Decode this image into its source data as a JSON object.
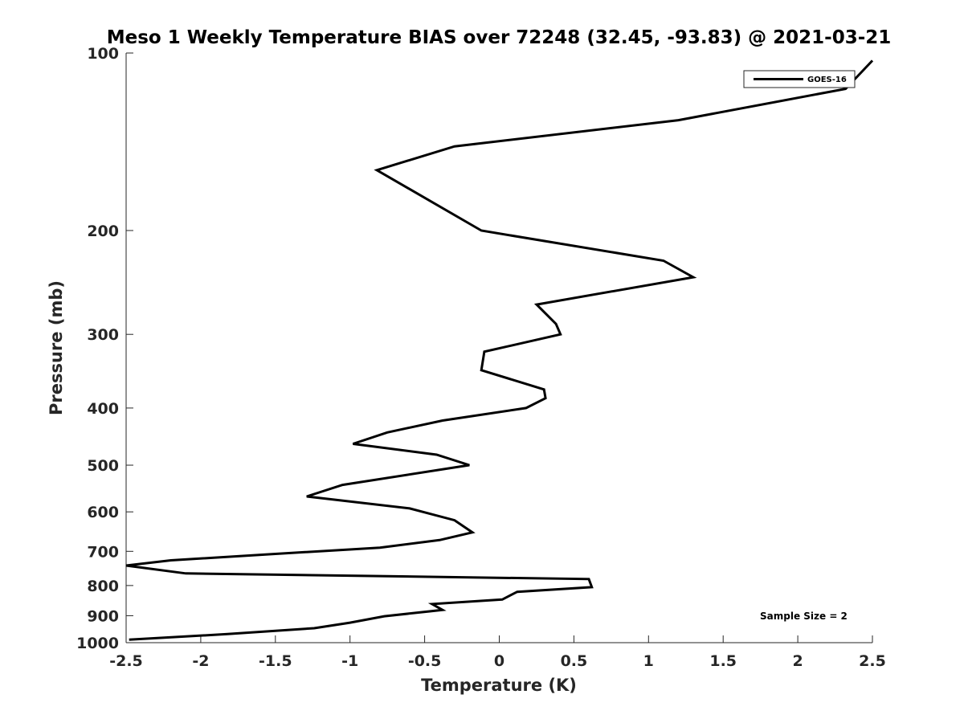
{
  "chart_data": {
    "type": "line",
    "title": "Meso 1 Weekly Temperature BIAS over 72248 (32.45, -93.83) @ 2021-03-21",
    "xlabel": "Temperature (K)",
    "ylabel": "Pressure (mb)",
    "xlim": [
      -2.5,
      2.5
    ],
    "ylim": [
      100,
      1000
    ],
    "y_scale": "log",
    "y_reversed": true,
    "x_ticks": [
      -2.5,
      -2,
      -1.5,
      -1,
      -0.5,
      0,
      0.5,
      1,
      1.5,
      2,
      2.5
    ],
    "x_tick_labels": [
      "-2.5",
      "-2",
      "-1.5",
      "-1",
      "-0.5",
      "0",
      "0.5",
      "1",
      "1.5",
      "2",
      "2.5"
    ],
    "y_ticks": [
      100,
      200,
      300,
      400,
      500,
      600,
      700,
      800,
      900,
      1000
    ],
    "y_tick_labels": [
      "100",
      "200",
      "300",
      "400",
      "500",
      "600",
      "700",
      "800",
      "900",
      "1000"
    ],
    "grid": false,
    "legend_position": "top-right",
    "annotation": "Sample Size = 2",
    "series": [
      {
        "name": "GOES-16",
        "color": "#000000",
        "points": [
          [
            2.5,
            103
          ],
          [
            2.32,
            115
          ],
          [
            1.2,
            130
          ],
          [
            -0.3,
            144
          ],
          [
            -0.82,
            158
          ],
          [
            -0.12,
            200
          ],
          [
            1.1,
            225
          ],
          [
            1.3,
            240
          ],
          [
            0.25,
            267
          ],
          [
            0.38,
            288
          ],
          [
            0.41,
            300
          ],
          [
            -0.1,
            321
          ],
          [
            -0.12,
            345
          ],
          [
            0.3,
            372
          ],
          [
            0.31,
            385
          ],
          [
            0.18,
            400
          ],
          [
            -0.38,
            420
          ],
          [
            -0.75,
            440
          ],
          [
            -0.98,
            460
          ],
          [
            -0.42,
            480
          ],
          [
            -0.2,
            500
          ],
          [
            -1.05,
            540
          ],
          [
            -1.29,
            565
          ],
          [
            -0.6,
            592
          ],
          [
            -0.3,
            620
          ],
          [
            -0.18,
            650
          ],
          [
            -0.4,
            670
          ],
          [
            -0.8,
            690
          ],
          [
            -1.5,
            707
          ],
          [
            -2.2,
            725
          ],
          [
            -2.5,
            740
          ],
          [
            -2.1,
            763
          ],
          [
            0.6,
            780
          ],
          [
            0.62,
            805
          ],
          [
            0.12,
            820
          ],
          [
            0.02,
            845
          ],
          [
            -0.45,
            860
          ],
          [
            -0.38,
            880
          ],
          [
            -0.77,
            902
          ],
          [
            -1.0,
            925
          ],
          [
            -1.24,
            945
          ],
          [
            -1.82,
            967
          ],
          [
            -2.48,
            988
          ]
        ]
      }
    ]
  }
}
